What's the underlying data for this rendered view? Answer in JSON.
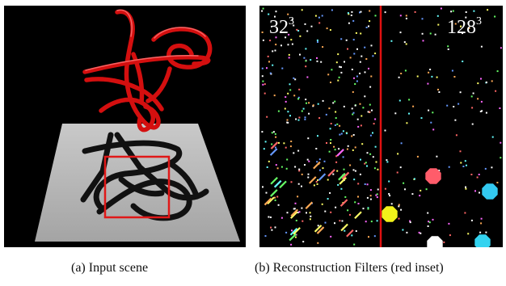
{
  "figure": {
    "panel_a": {
      "caption": "(a) Input scene"
    },
    "panel_b": {
      "caption": "(b) Reconstruction Filters (red inset)",
      "left_label": {
        "base": "32",
        "exp": "3"
      },
      "right_label": {
        "base": "128",
        "exp": "3"
      }
    }
  },
  "colors": {
    "background": "#000000",
    "ground_plane": "#b3b3b3",
    "tube": "#e01010",
    "shadow": "#111111",
    "inset_box": "#e01818",
    "divider": "#e01010"
  }
}
